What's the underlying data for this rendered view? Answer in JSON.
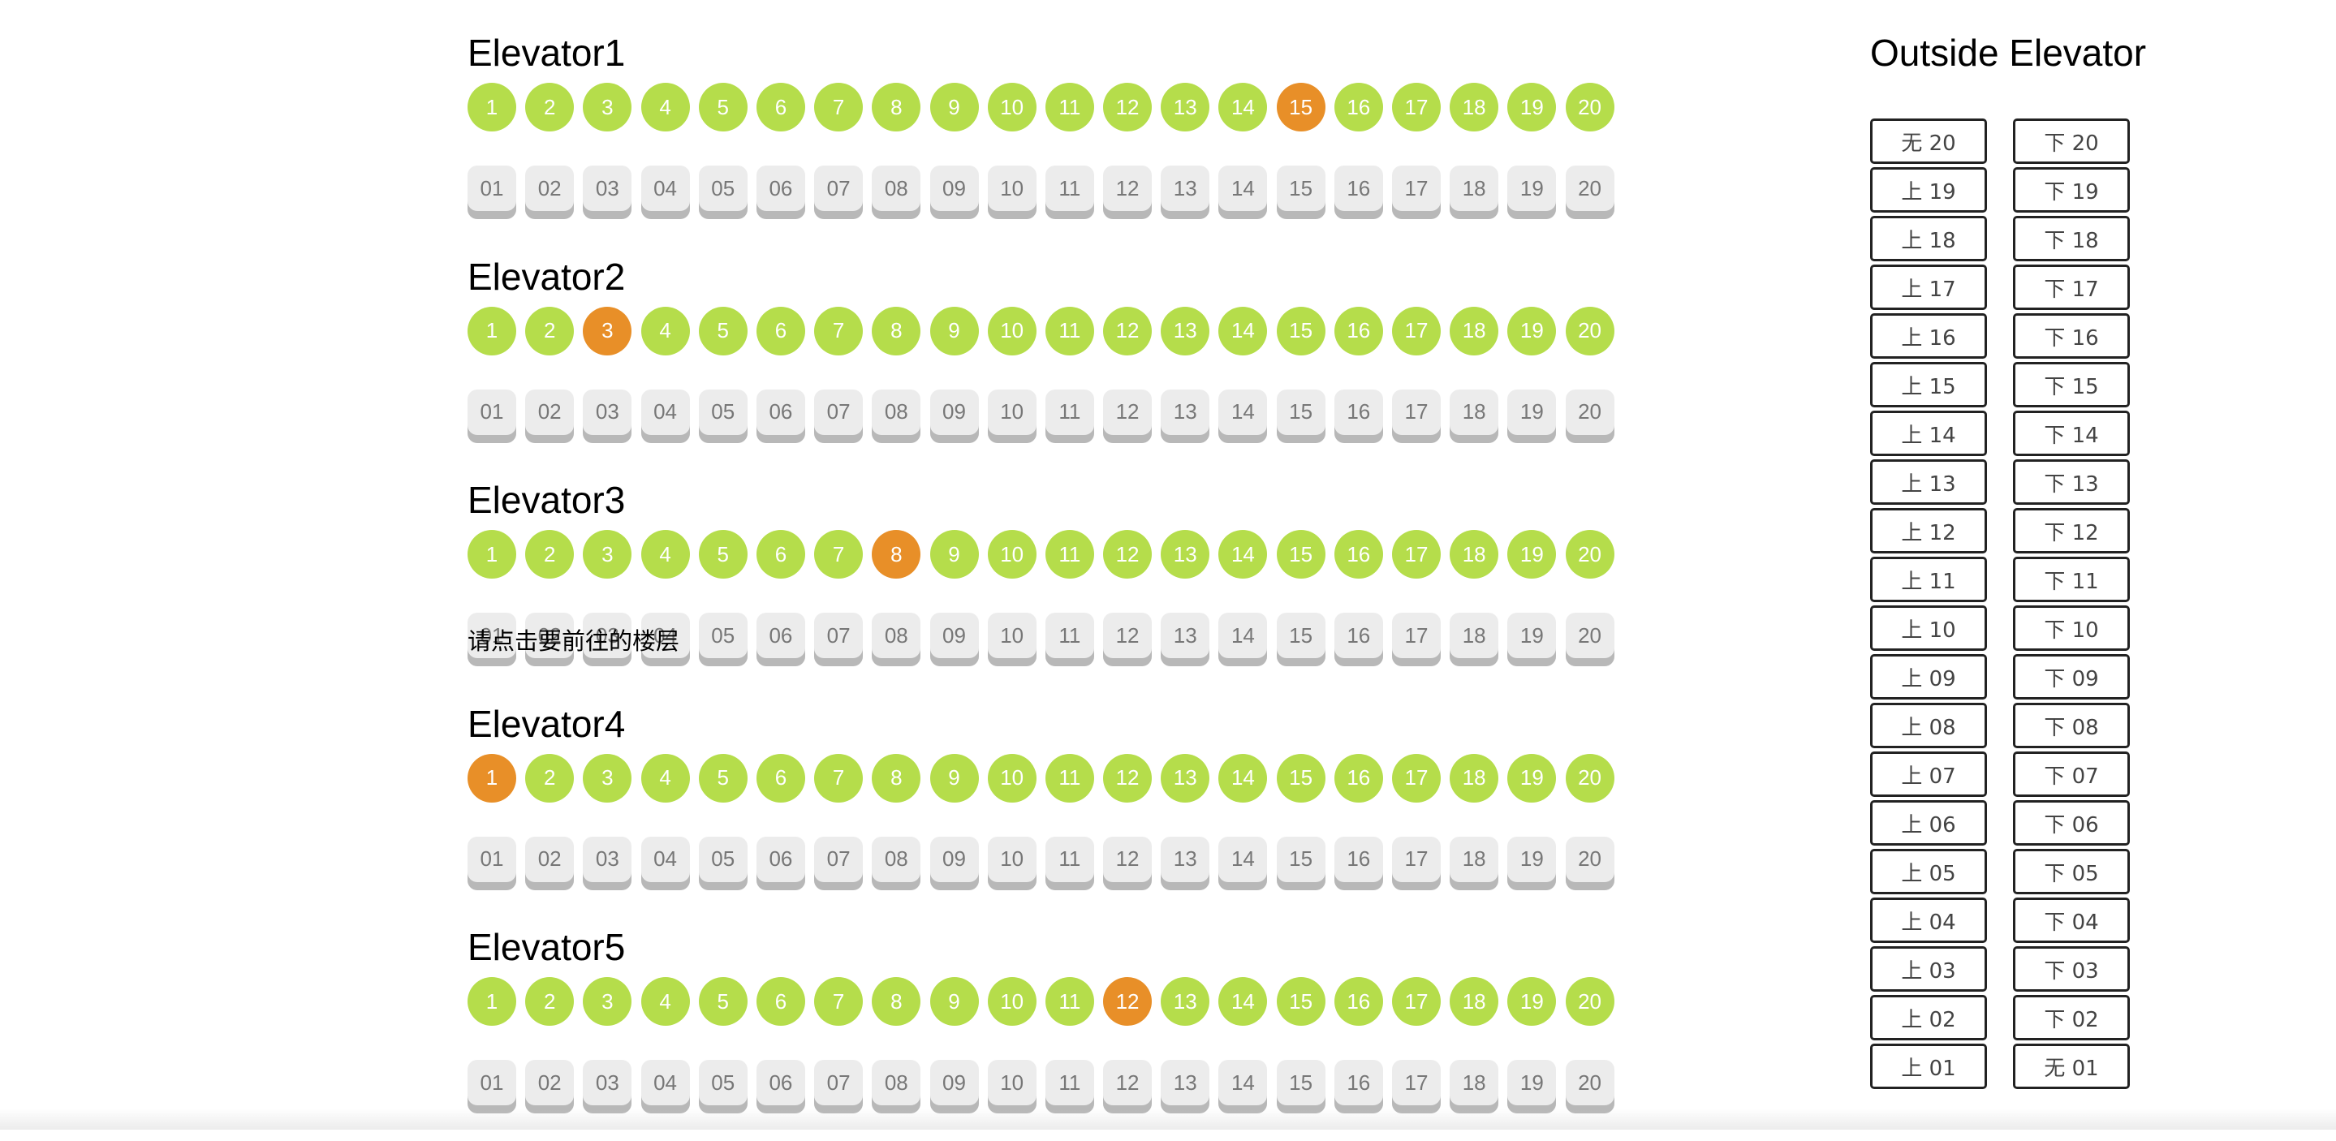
{
  "hint_text": "请点击要前往的楼层",
  "colors": {
    "indicator": "#b5dd4b",
    "indicator_current": "#e88f28",
    "button": "#ececec",
    "button_shadow": "#b8b8b8"
  },
  "elevators": [
    {
      "title": "Elevator1",
      "current_floor": 15
    },
    {
      "title": "Elevator2",
      "current_floor": 3
    },
    {
      "title": "Elevator3",
      "current_floor": 8
    },
    {
      "title": "Elevator4",
      "current_floor": 1
    },
    {
      "title": "Elevator5",
      "current_floor": 12
    }
  ],
  "floor_indicators": [
    "1",
    "2",
    "3",
    "4",
    "5",
    "6",
    "7",
    "8",
    "9",
    "10",
    "11",
    "12",
    "13",
    "14",
    "15",
    "16",
    "17",
    "18",
    "19",
    "20"
  ],
  "floor_buttons": [
    "01",
    "02",
    "03",
    "04",
    "05",
    "06",
    "07",
    "08",
    "09",
    "10",
    "11",
    "12",
    "13",
    "14",
    "15",
    "16",
    "17",
    "18",
    "19",
    "20"
  ],
  "outside": {
    "title": "Outside Elevator",
    "up_buttons": [
      "无 20",
      "上 19",
      "上 18",
      "上 17",
      "上 16",
      "上 15",
      "上 14",
      "上 13",
      "上 12",
      "上 11",
      "上 10",
      "上 09",
      "上 08",
      "上 07",
      "上 06",
      "上 05",
      "上 04",
      "上 03",
      "上 02",
      "上 01"
    ],
    "down_buttons": [
      "下 20",
      "下 19",
      "下 18",
      "下 17",
      "下 16",
      "下 15",
      "下 14",
      "下 13",
      "下 12",
      "下 11",
      "下 10",
      "下 09",
      "下 08",
      "下 07",
      "下 06",
      "下 05",
      "下 04",
      "下 03",
      "下 02",
      "无 01"
    ]
  }
}
